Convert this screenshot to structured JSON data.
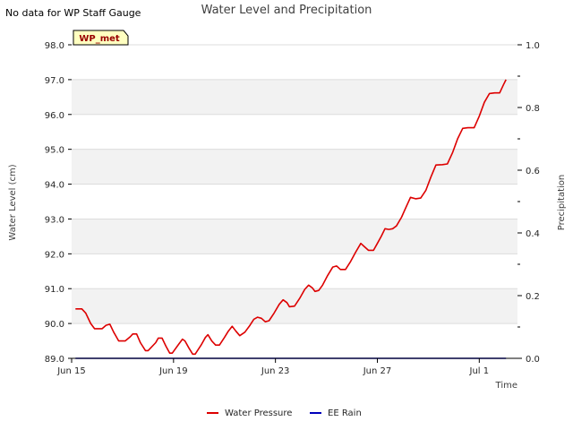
{
  "no_data_note": "No data for WP Staff Gauge",
  "chart_data": {
    "type": "line",
    "title": "Water Level and Precipitation",
    "station_label": "WP_met",
    "xlabel": "Time",
    "ylabel_left": "Water Level (cm)",
    "ylabel_right": "Precipitation",
    "ylim_left": [
      89.0,
      98.0
    ],
    "ylim_right": [
      0.0,
      1.0
    ],
    "y_ticks_left": [
      "89.0",
      "90.0",
      "91.0",
      "92.0",
      "93.0",
      "94.0",
      "95.0",
      "96.0",
      "97.0",
      "98.0"
    ],
    "y_ticks_right": [
      "0.0",
      "0.2",
      "0.4",
      "0.6",
      "0.8",
      "1.0"
    ],
    "x_ticks": [
      {
        "label": "Jun 15",
        "day": 0
      },
      {
        "label": "Jun 19",
        "day": 4
      },
      {
        "label": "Jun 23",
        "day": 8
      },
      {
        "label": "Jun 27",
        "day": 12
      },
      {
        "label": "Jul 1",
        "day": 16
      }
    ],
    "x_range_days": [
      0,
      17.5
    ],
    "grid": "horizontal bands",
    "legend_position": "bottom-center",
    "series": [
      {
        "name": "Water Pressure",
        "color": "#dd0000",
        "axis": "left",
        "points": [
          [
            0.15,
            90.42
          ],
          [
            0.4,
            90.42
          ],
          [
            0.55,
            90.3
          ],
          [
            0.75,
            90.0
          ],
          [
            0.9,
            89.85
          ],
          [
            1.2,
            89.85
          ],
          [
            1.35,
            89.95
          ],
          [
            1.5,
            89.98
          ],
          [
            1.65,
            89.75
          ],
          [
            1.85,
            89.5
          ],
          [
            2.1,
            89.5
          ],
          [
            2.3,
            89.62
          ],
          [
            2.4,
            89.7
          ],
          [
            2.55,
            89.7
          ],
          [
            2.7,
            89.45
          ],
          [
            2.9,
            89.22
          ],
          [
            3.0,
            89.22
          ],
          [
            3.3,
            89.45
          ],
          [
            3.4,
            89.58
          ],
          [
            3.55,
            89.58
          ],
          [
            3.7,
            89.35
          ],
          [
            3.85,
            89.15
          ],
          [
            3.95,
            89.15
          ],
          [
            4.2,
            89.4
          ],
          [
            4.35,
            89.55
          ],
          [
            4.45,
            89.5
          ],
          [
            4.6,
            89.3
          ],
          [
            4.75,
            89.12
          ],
          [
            4.85,
            89.12
          ],
          [
            5.1,
            89.4
          ],
          [
            5.25,
            89.6
          ],
          [
            5.35,
            89.68
          ],
          [
            5.5,
            89.5
          ],
          [
            5.65,
            89.38
          ],
          [
            5.8,
            89.38
          ],
          [
            6.0,
            89.6
          ],
          [
            6.15,
            89.78
          ],
          [
            6.3,
            89.92
          ],
          [
            6.45,
            89.78
          ],
          [
            6.6,
            89.65
          ],
          [
            6.8,
            89.75
          ],
          [
            7.0,
            89.95
          ],
          [
            7.15,
            90.12
          ],
          [
            7.3,
            90.18
          ],
          [
            7.45,
            90.15
          ],
          [
            7.6,
            90.05
          ],
          [
            7.75,
            90.08
          ],
          [
            7.95,
            90.3
          ],
          [
            8.15,
            90.55
          ],
          [
            8.3,
            90.68
          ],
          [
            8.45,
            90.6
          ],
          [
            8.55,
            90.48
          ],
          [
            8.75,
            90.5
          ],
          [
            8.95,
            90.72
          ],
          [
            9.15,
            90.98
          ],
          [
            9.3,
            91.1
          ],
          [
            9.45,
            91.02
          ],
          [
            9.55,
            90.92
          ],
          [
            9.7,
            90.95
          ],
          [
            9.85,
            91.1
          ],
          [
            10.05,
            91.38
          ],
          [
            10.25,
            91.62
          ],
          [
            10.4,
            91.65
          ],
          [
            10.55,
            91.55
          ],
          [
            10.75,
            91.55
          ],
          [
            10.95,
            91.78
          ],
          [
            11.15,
            92.05
          ],
          [
            11.35,
            92.3
          ],
          [
            11.5,
            92.2
          ],
          [
            11.65,
            92.1
          ],
          [
            11.85,
            92.1
          ],
          [
            12.0,
            92.3
          ],
          [
            12.15,
            92.5
          ],
          [
            12.3,
            92.72
          ],
          [
            12.45,
            92.7
          ],
          [
            12.6,
            92.72
          ],
          [
            12.75,
            92.8
          ],
          [
            12.95,
            93.05
          ],
          [
            13.1,
            93.3
          ],
          [
            13.3,
            93.62
          ],
          [
            13.5,
            93.58
          ],
          [
            13.7,
            93.6
          ],
          [
            13.9,
            93.82
          ],
          [
            14.1,
            94.2
          ],
          [
            14.3,
            94.55
          ],
          [
            14.55,
            94.56
          ],
          [
            14.75,
            94.58
          ],
          [
            14.95,
            94.9
          ],
          [
            15.15,
            95.3
          ],
          [
            15.35,
            95.6
          ],
          [
            15.55,
            95.62
          ],
          [
            15.8,
            95.62
          ],
          [
            16.0,
            95.95
          ],
          [
            16.2,
            96.35
          ],
          [
            16.4,
            96.6
          ],
          [
            16.6,
            96.62
          ],
          [
            16.8,
            96.62
          ],
          [
            16.95,
            96.85
          ],
          [
            17.05,
            97.0
          ]
        ]
      },
      {
        "name": "EE Rain",
        "color": "#0000bb",
        "axis": "right",
        "points": [
          [
            0.15,
            0.0
          ],
          [
            17.05,
            0.0
          ]
        ]
      }
    ]
  }
}
